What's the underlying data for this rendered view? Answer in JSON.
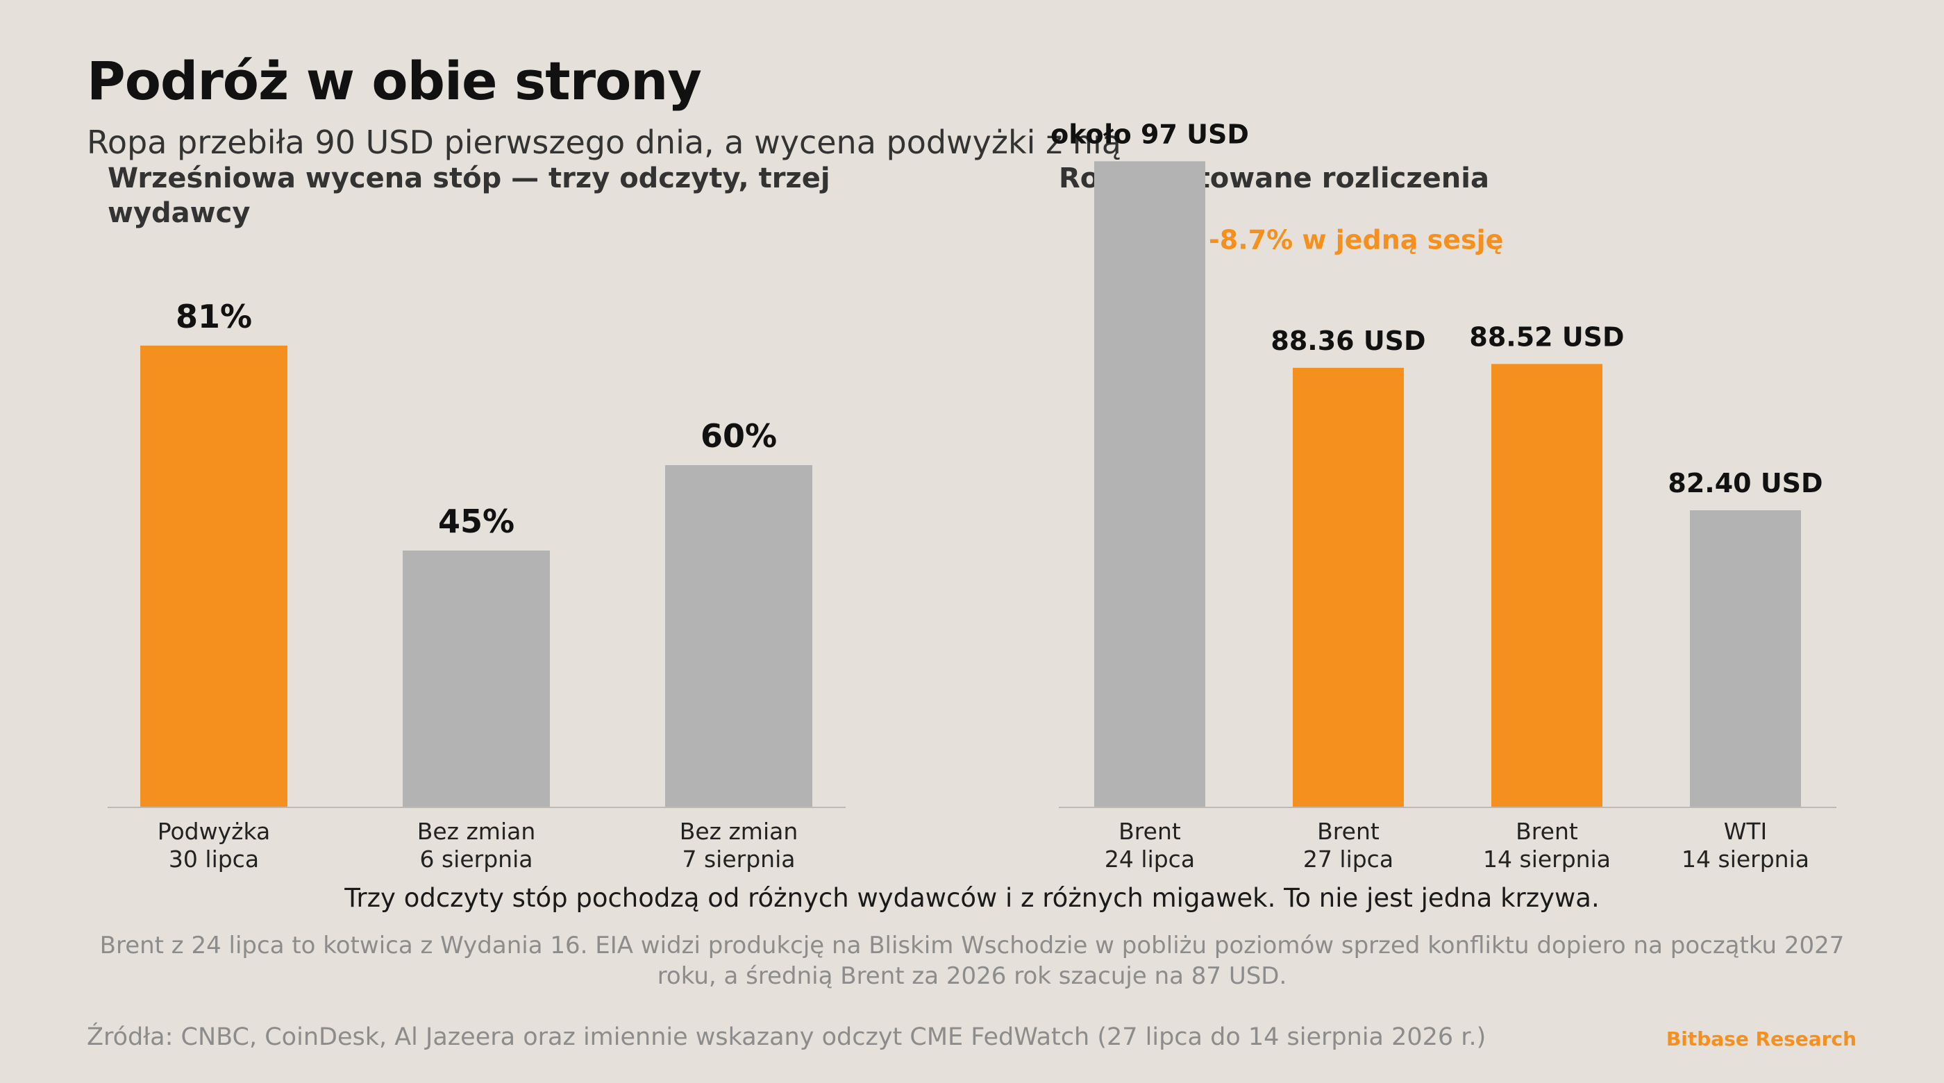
{
  "header": {
    "title": "Podróż w obie strony",
    "subtitle": "Ropa przebiła 90 USD pierwszego dnia, a wycena podwyżki z nią"
  },
  "chart_data": [
    {
      "type": "bar",
      "title": "Wrześniowa wycena stóp — trzy odczyty, trzej wydawcy",
      "categories": [
        "Podwyżka\n30 lipca",
        "Bez zmian\n6 sierpnia",
        "Bez zmian\n7 sierpnia"
      ],
      "values": [
        81,
        45,
        60
      ],
      "value_labels": [
        "81%",
        "45%",
        "60%"
      ],
      "colors": [
        "#f5901e",
        "#b3b3b3",
        "#b3b3b3"
      ],
      "ylim": [
        0,
        100
      ],
      "grid": false,
      "legend": "none"
    },
    {
      "type": "bar",
      "title": "Ropa, datowane rozliczenia",
      "categories": [
        "Brent\n24 lipca",
        "Brent\n27 lipca",
        "Brent\n14 sierpnia",
        "WTI\n14 sierpnia"
      ],
      "values": [
        97,
        88.36,
        88.52,
        82.4
      ],
      "value_labels": [
        "około 97 USD",
        "88.36 USD",
        "88.52 USD",
        "82.40 USD"
      ],
      "colors": [
        "#b3b3b3",
        "#f5901e",
        "#f5901e",
        "#b3b3b3"
      ],
      "ylim": [
        70,
        100
      ],
      "grid": false,
      "legend": "none",
      "annotation": "-8.7% w jedną sesję"
    }
  ],
  "notes": {
    "main": "Trzy odczyty stóp pochodzą od różnych wydawców i z różnych migawek. To nie jest jedna krzywa.",
    "footnote": "Brent z 24 lipca to kotwica z Wydania 16. EIA widzi produkcję na Bliskim Wschodzie w pobliżu poziomów sprzed konfliktu dopiero na początku 2027 roku, a średnią Brent za 2026 rok szacuje na 87 USD."
  },
  "footer": {
    "sources": "Źródła: CNBC, CoinDesk, Al Jazeera oraz imiennie wskazany odczyt CME FedWatch (27 lipca do 14 sierpnia 2026 r.)",
    "brand": "Bitbase Research"
  },
  "colors": {
    "background": "#e5e0da",
    "accent": "#f5901e",
    "neutral": "#b3b3b3"
  }
}
